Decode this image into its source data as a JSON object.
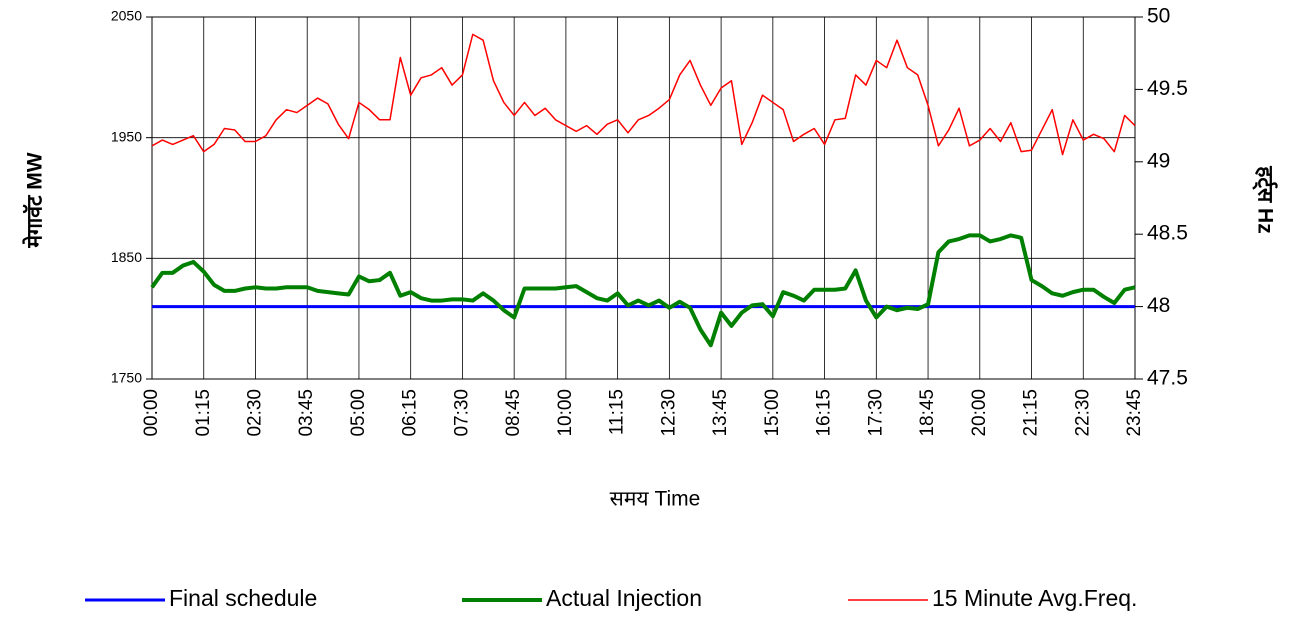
{
  "chart_data": {
    "type": "line",
    "x_label": "समय   Time",
    "y_label": "मेगावॅट MW",
    "y2_label": "हर्ट्स Hz",
    "categories": [
      "00:00",
      null,
      null,
      null,
      null,
      "01:15",
      null,
      null,
      null,
      null,
      "02:30",
      null,
      null,
      null,
      null,
      "03:45",
      null,
      null,
      null,
      null,
      "05:00",
      null,
      null,
      null,
      null,
      "06:15",
      null,
      null,
      null,
      null,
      "07:30",
      null,
      null,
      null,
      null,
      "08:45",
      null,
      null,
      null,
      null,
      "10:00",
      null,
      null,
      null,
      null,
      "11:15",
      null,
      null,
      null,
      null,
      "12:30",
      null,
      null,
      null,
      null,
      "13:45",
      null,
      null,
      null,
      null,
      "15:00",
      null,
      null,
      null,
      null,
      "16:15",
      null,
      null,
      null,
      null,
      "17:30",
      null,
      null,
      null,
      null,
      "18:45",
      null,
      null,
      null,
      null,
      "20:00",
      null,
      null,
      null,
      null,
      "21:15",
      null,
      null,
      null,
      null,
      "22:30",
      null,
      null,
      null,
      null,
      "23:45"
    ],
    "series": [
      {
        "name": "Final schedule",
        "color": "#0000ff",
        "values": [
          1810,
          1810,
          1810,
          1810,
          1810,
          1810,
          1810,
          1810,
          1810,
          1810,
          1810,
          1810,
          1810,
          1810,
          1810,
          1810,
          1810,
          1810,
          1810,
          1810,
          1810,
          1810,
          1810,
          1810,
          1810,
          1810,
          1810,
          1810,
          1810,
          1810,
          1810,
          1810,
          1810,
          1810,
          1810,
          1810,
          1810,
          1810,
          1810,
          1810,
          1810,
          1810,
          1810,
          1810,
          1810,
          1810,
          1810,
          1810,
          1810,
          1810,
          1810,
          1810,
          1810,
          1810,
          1810,
          1810,
          1810,
          1810,
          1810,
          1810,
          1810,
          1810,
          1810,
          1810,
          1810,
          1810,
          1810,
          1810,
          1810,
          1810,
          1810,
          1810,
          1810,
          1810,
          1810,
          1810,
          1810,
          1810,
          1810,
          1810,
          1810,
          1810,
          1810,
          1810,
          1810,
          1810,
          1810,
          1810,
          1810,
          1810,
          1810,
          1810,
          1810,
          1810,
          1810,
          1810
        ]
      },
      {
        "name": "Actual Injection",
        "color": "#008000",
        "values": [
          1826,
          1838,
          1838,
          1844,
          1847,
          1839,
          1828,
          1823,
          1823,
          1825,
          1826,
          1825,
          1825,
          1826,
          1826,
          1826,
          1823,
          1822,
          1821,
          1820,
          1835,
          1831,
          1832,
          1838,
          1819,
          1822,
          1817,
          1815,
          1815,
          1816,
          1816,
          1815,
          1821,
          1815,
          1807,
          1801,
          1825,
          1825,
          1825,
          1825,
          1826,
          1827,
          1822,
          1817,
          1815,
          1821,
          1811,
          1815,
          1811,
          1815,
          1809,
          1814,
          1809,
          1791,
          1778,
          1805,
          1794,
          1805,
          1811,
          1812,
          1802,
          1822,
          1819,
          1815,
          1824,
          1824,
          1824,
          1825,
          1840,
          1815,
          1801,
          1810,
          1807,
          1809,
          1808,
          1812,
          1855,
          1864,
          1866,
          1869,
          1869,
          1864,
          1866,
          1869,
          1867,
          1832,
          1827,
          1821,
          1819,
          1822,
          1824,
          1824,
          1818,
          1813,
          1824,
          1826
        ]
      },
      {
        "name": "15 Minute Avg.Freq.",
        "color": "#ff0000",
        "axis": "y2",
        "values": [
          49.11,
          49.15,
          49.12,
          49.15,
          49.18,
          49.07,
          49.12,
          49.23,
          49.22,
          49.14,
          49.14,
          49.18,
          49.29,
          49.36,
          49.34,
          49.39,
          49.44,
          49.4,
          49.26,
          49.16,
          49.41,
          49.36,
          49.29,
          49.29,
          49.72,
          49.46,
          49.58,
          49.6,
          49.65,
          49.53,
          49.6,
          49.88,
          49.84,
          49.56,
          49.41,
          49.32,
          49.41,
          49.32,
          49.37,
          49.29,
          49.25,
          49.21,
          49.25,
          49.19,
          49.26,
          49.29,
          49.2,
          49.29,
          49.32,
          49.37,
          49.43,
          49.6,
          49.7,
          49.53,
          49.39,
          49.51,
          49.56,
          49.12,
          49.27,
          49.46,
          49.41,
          49.36,
          49.14,
          49.19,
          49.23,
          49.12,
          49.29,
          49.3,
          49.6,
          49.53,
          49.7,
          49.65,
          49.84,
          49.65,
          49.6,
          49.39,
          49.11,
          49.22,
          49.37,
          49.11,
          49.15,
          49.23,
          49.14,
          49.27,
          49.07,
          49.08,
          49.22,
          49.36,
          49.05,
          49.29,
          49.15,
          49.19,
          49.16,
          49.07,
          49.32,
          49.25
        ]
      }
    ],
    "ylim": [
      1750,
      2050
    ],
    "yticks": [
      1750,
      1850,
      1950,
      2050
    ],
    "y2lim": [
      47.5,
      50
    ],
    "y2ticks": [
      47.5,
      48,
      48.5,
      49,
      49.5,
      50
    ],
    "grid": true
  }
}
